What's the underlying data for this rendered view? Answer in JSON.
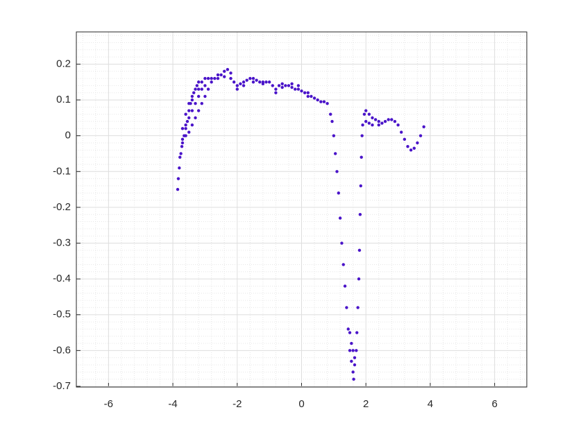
{
  "chart_data": {
    "type": "scatter",
    "color": "#4a14c9",
    "xlim": [
      -7,
      7
    ],
    "ylim": [
      -0.702,
      0.29
    ],
    "xticks": [
      -6,
      -4,
      -2,
      0,
      2,
      4,
      6
    ],
    "yticks": [
      -0.7,
      -0.6,
      -0.5,
      -0.4,
      -0.3,
      -0.2,
      -0.1,
      0,
      0.1,
      0.2
    ],
    "grid": true,
    "minor_grid": true,
    "x": [
      -3.85,
      -3.83,
      -3.8,
      -3.78,
      -3.75,
      -3.72,
      -3.7,
      -3.65,
      -3.6,
      -3.55,
      -3.5,
      -3.45,
      -3.4,
      -3.35,
      -3.3,
      -3.25,
      -3.2,
      -3.1,
      -3.0,
      -2.9,
      -3.7,
      -3.6,
      -3.5,
      -3.4,
      -3.3,
      -3.2,
      -3.1,
      -3.0,
      -2.9,
      -2.8,
      -3.6,
      -3.5,
      -3.4,
      -3.3,
      -3.2,
      -3.1,
      -3.0,
      -2.8,
      -3.7,
      -3.6,
      -3.5,
      -3.4,
      -3.2,
      -2.7,
      -2.6,
      -2.5,
      -2.4,
      -2.3,
      -2.2,
      -2.1,
      -2.0,
      -1.9,
      -1.8,
      -1.7,
      -1.6,
      -1.5,
      -1.4,
      -1.3,
      -1.2,
      -1.1,
      -1.0,
      -0.9,
      -0.8,
      -0.7,
      -0.6,
      -0.5,
      -0.4,
      -0.3,
      -0.2,
      -0.1,
      0.0,
      0.1,
      0.2,
      0.3,
      0.4,
      0.5,
      0.6,
      0.7,
      0.8,
      -2.6,
      -2.4,
      -2.2,
      -2.0,
      -1.8,
      -1.5,
      -1.2,
      -0.8,
      -0.6,
      -0.3,
      -0.1,
      0.2,
      0.9,
      0.95,
      1.0,
      1.05,
      1.1,
      1.15,
      1.2,
      1.25,
      1.3,
      1.35,
      1.4,
      1.45,
      1.5,
      1.55,
      1.6,
      1.62,
      1.65,
      1.7,
      1.72,
      1.75,
      1.78,
      1.8,
      1.82,
      1.84,
      1.86,
      1.88,
      1.9,
      1.95,
      2.0,
      2.1,
      2.2,
      2.3,
      2.4,
      2.5,
      2.6,
      2.7,
      2.8,
      2.9,
      3.0,
      3.1,
      3.2,
      3.3,
      3.4,
      3.5,
      3.6,
      3.7,
      3.8,
      1.5,
      1.6,
      1.55,
      1.65,
      2.0,
      2.1,
      2.2,
      2.4
    ],
    "y": [
      -0.15,
      -0.12,
      -0.09,
      -0.06,
      -0.05,
      -0.03,
      -0.01,
      0.0,
      0.02,
      0.04,
      0.07,
      0.09,
      0.11,
      0.12,
      0.13,
      0.14,
      0.15,
      0.15,
      0.16,
      0.16,
      -0.02,
      0.0,
      0.01,
      0.03,
      0.05,
      0.07,
      0.09,
      0.11,
      0.13,
      0.15,
      0.03,
      0.05,
      0.07,
      0.09,
      0.11,
      0.13,
      0.14,
      0.16,
      0.02,
      0.06,
      0.09,
      0.1,
      0.13,
      0.16,
      0.17,
      0.17,
      0.18,
      0.185,
      0.175,
      0.15,
      0.14,
      0.145,
      0.15,
      0.155,
      0.16,
      0.16,
      0.155,
      0.15,
      0.15,
      0.15,
      0.15,
      0.14,
      0.13,
      0.14,
      0.145,
      0.14,
      0.14,
      0.135,
      0.13,
      0.13,
      0.125,
      0.12,
      0.11,
      0.11,
      0.105,
      0.1,
      0.095,
      0.095,
      0.09,
      0.16,
      0.165,
      0.16,
      0.13,
      0.14,
      0.15,
      0.145,
      0.12,
      0.135,
      0.145,
      0.14,
      0.12,
      0.06,
      0.04,
      0.0,
      -0.05,
      -0.1,
      -0.16,
      -0.23,
      -0.3,
      -0.36,
      -0.42,
      -0.48,
      -0.54,
      -0.6,
      -0.63,
      -0.66,
      -0.68,
      -0.64,
      -0.6,
      -0.55,
      -0.48,
      -0.4,
      -0.32,
      -0.22,
      -0.14,
      -0.06,
      0.0,
      0.03,
      0.06,
      0.07,
      0.06,
      0.05,
      0.045,
      0.04,
      0.035,
      0.04,
      0.045,
      0.045,
      0.04,
      0.03,
      0.01,
      -0.01,
      -0.03,
      -0.04,
      -0.035,
      -0.02,
      0.0,
      0.025,
      -0.55,
      -0.6,
      -0.58,
      -0.62,
      0.04,
      0.035,
      0.03,
      0.03
    ]
  }
}
